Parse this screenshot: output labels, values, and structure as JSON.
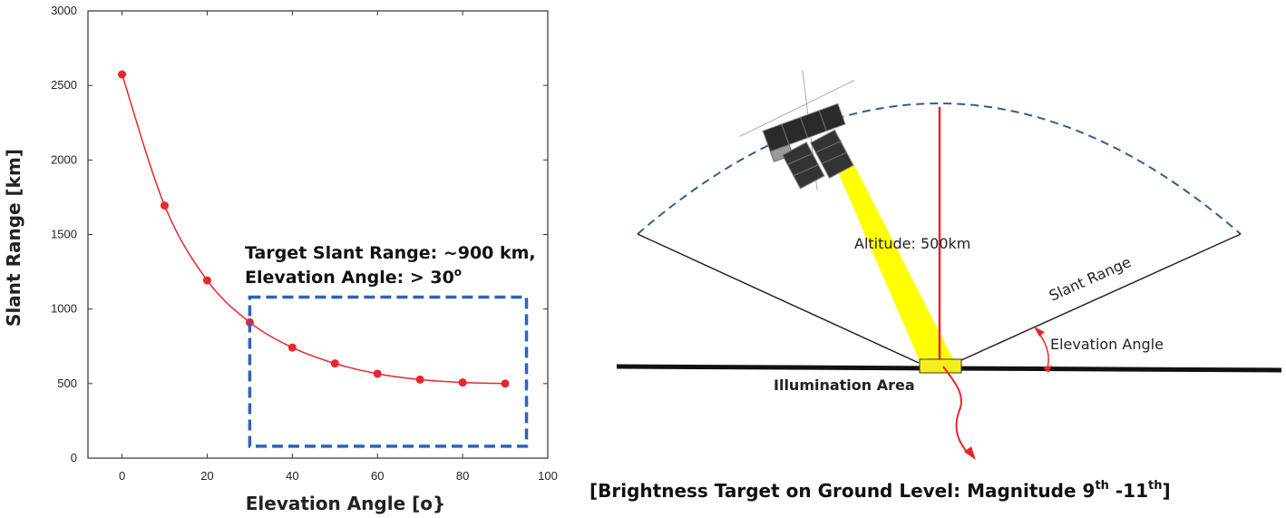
{
  "chart_data": {
    "type": "line",
    "xlabel": "Elevation Angle [o}",
    "ylabel": "Slant Range [km]",
    "xlim": [
      -8,
      100
    ],
    "ylim": [
      0,
      3000
    ],
    "xticks": [
      0,
      20,
      40,
      60,
      80,
      100
    ],
    "yticks": [
      0,
      500,
      1000,
      1500,
      2000,
      2500,
      3000
    ],
    "grid": false,
    "series": [
      {
        "x": [
          0,
          10,
          20,
          30,
          40,
          50,
          60,
          70,
          80,
          90
        ],
        "values": [
          2574,
          1694,
          1192,
          911,
          742,
          635,
          566,
          527,
          507,
          500
        ],
        "color": "#e8262a"
      }
    ],
    "annotation": {
      "line1": "Target Slant Range: ~900 km,",
      "line2_prefix": "Elevation Angle: > 30",
      "line2_sup": "o",
      "box_color": "#2e63b8"
    }
  },
  "diagram": {
    "altitude_label": "Altitude: 500km",
    "slant_range_label": "Slant Range",
    "elevation_label": "Elevation Angle",
    "illumination_label": "Illumination Area",
    "caption": {
      "prefix": "[Brightness Target on Ground Level:  Magnitude 9",
      "sup1": "th",
      "mid": " -11",
      "sup2": "th",
      "suffix": "]"
    },
    "colors": {
      "altitude_line": "#e8262a",
      "beam": "#ffff00",
      "coverage_arc": "#2e5f8f",
      "illumination_box": "#f5ee1c"
    }
  }
}
